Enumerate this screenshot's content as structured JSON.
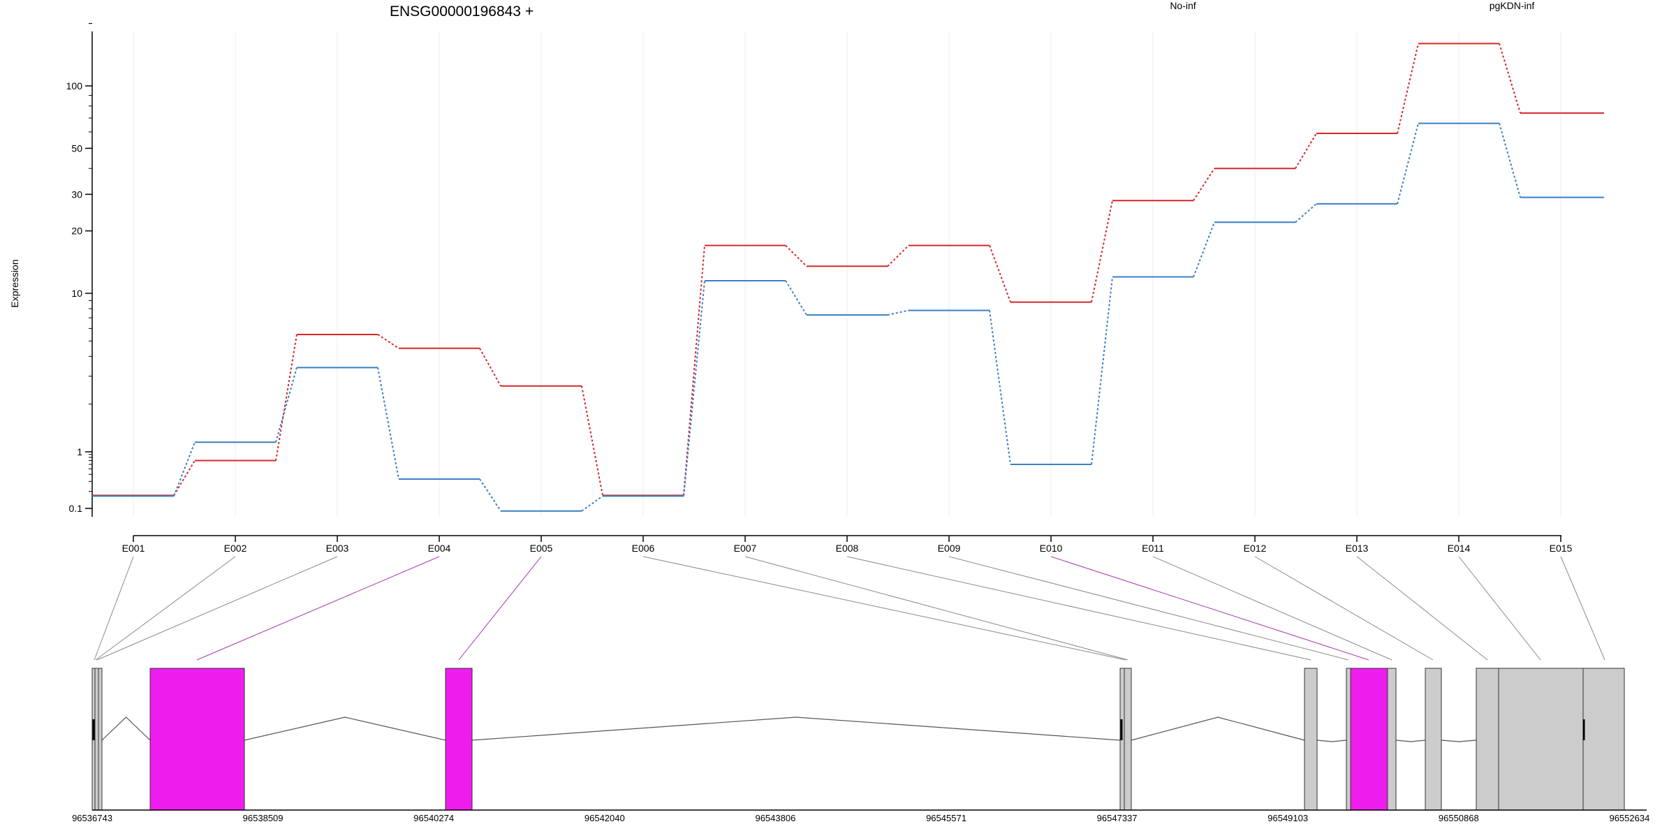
{
  "chart_data": {
    "type": "line",
    "title": "ENSG00000196843 +",
    "ylabel": "Expression",
    "yscale": "log",
    "ylim": [
      0.08,
      250
    ],
    "yticks": [
      0.1,
      1,
      10,
      20,
      30,
      50,
      100
    ],
    "ytick_labels": [
      "0.1",
      "1",
      "10",
      "20",
      "30",
      "50",
      "100"
    ],
    "categories": [
      "E001",
      "E002",
      "E003",
      "E004",
      "E005",
      "E006",
      "E007",
      "E008",
      "E009",
      "E010",
      "E011",
      "E012",
      "E013",
      "E014",
      "E015"
    ],
    "series": [
      {
        "name": "No-inf",
        "color": "#d62728",
        "values": [
          0.17,
          0.7,
          5.5,
          4.5,
          2.6,
          0.17,
          17,
          13.5,
          17,
          8.8,
          28,
          40,
          59,
          160,
          74
        ]
      },
      {
        "name": "pgKDN-inf",
        "color": "#3b7fc4",
        "values": [
          0.165,
          1.15,
          3.4,
          0.33,
          0.09,
          0.165,
          11.5,
          7.3,
          7.8,
          0.6,
          12,
          22,
          27,
          66,
          29
        ]
      }
    ],
    "legend_position": "top",
    "highlighted_exons": [
      "E004",
      "E005",
      "E010"
    ],
    "highlight_color": "#ee1dee",
    "exon_color": "#cccccc",
    "genomic_axis": {
      "labels": [
        "96536743",
        "96538509",
        "96540274",
        "96542040",
        "96543806",
        "96545571",
        "96547337",
        "96549103",
        "96550868",
        "96552634"
      ]
    }
  }
}
